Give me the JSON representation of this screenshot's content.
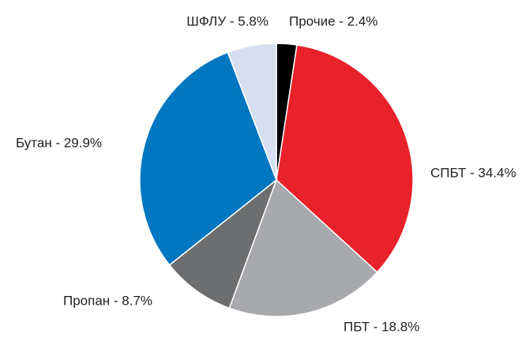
{
  "chart_data": {
    "type": "pie",
    "values": [
      2.4,
      34.4,
      18.8,
      8.7,
      29.9,
      5.8
    ],
    "value_labels": [
      "Прочие - 2.4%",
      "СПБТ - 34.4%",
      "ПБТ - 18.8%",
      "Пропан - 8.7%",
      "Бутан - 29.9%",
      "ШФЛУ - 5.8%"
    ],
    "colors": [
      "#000000",
      "#e8212b",
      "#a7a9ac",
      "#6d6e70",
      "#0077c0",
      "#d6dff0"
    ]
  }
}
